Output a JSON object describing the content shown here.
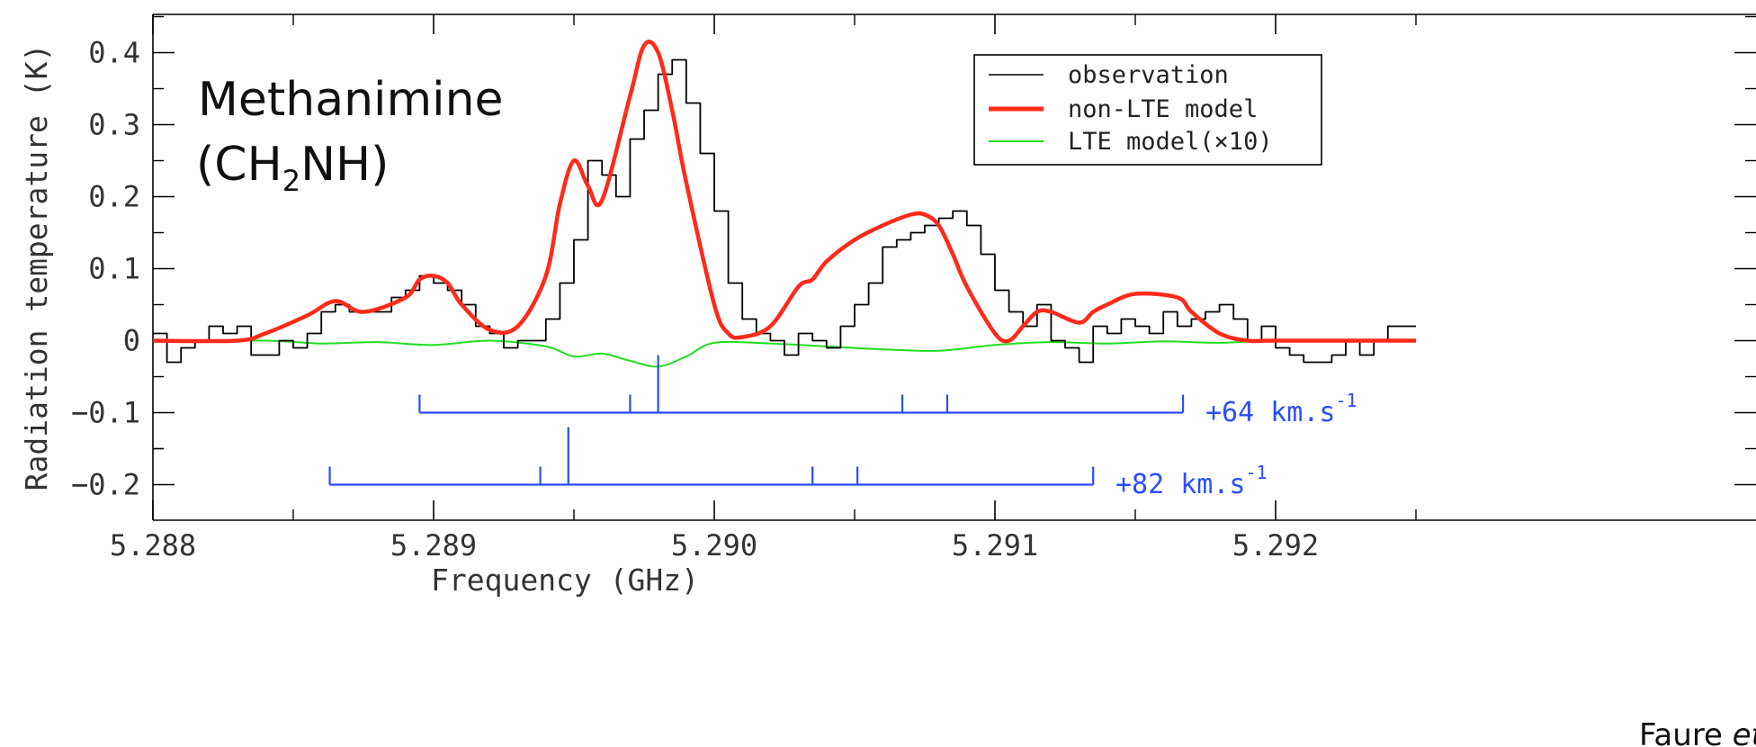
{
  "chart_data": {
    "type": "line",
    "title": "",
    "annotation": {
      "line1": "Methanimine",
      "line2_prefix": "(CH",
      "line2_sub": "2",
      "line2_suffix": "NH)"
    },
    "xlabel": "Frequency (GHz)",
    "ylabel": "Radiation temperature (K)",
    "xlim": [
      5.288,
      5.2925
    ],
    "ylim": [
      -0.25,
      0.45
    ],
    "xticks": [
      5.288,
      5.289,
      5.29,
      5.291,
      5.292
    ],
    "xtick_labels": [
      "5.288",
      "5.289",
      "5.290",
      "5.291",
      "5.292"
    ],
    "yticks": [
      -0.2,
      -0.1,
      0,
      0.1,
      0.2,
      0.3,
      0.4
    ],
    "ytick_labels": [
      "−0.2",
      "−0.1",
      "0",
      "0.1",
      "0.2",
      "0.3",
      "0.4"
    ],
    "legend": {
      "position": "top-right",
      "entries": [
        {
          "label": "observation",
          "color": "#000000"
        },
        {
          "label": "non-LTE model",
          "color": "#ff2a1a"
        },
        {
          "label": "LTE model(×10)",
          "color": "#22dd22"
        }
      ]
    },
    "series": [
      {
        "name": "observation",
        "style": "step",
        "color": "#000000",
        "x": [
          5.288,
          5.28805,
          5.2881,
          5.28815,
          5.2882,
          5.28825,
          5.2883,
          5.28835,
          5.2884,
          5.28845,
          5.2885,
          5.28855,
          5.2886,
          5.28865,
          5.2887,
          5.28875,
          5.2888,
          5.28885,
          5.2889,
          5.28895,
          5.289,
          5.28905,
          5.2891,
          5.28915,
          5.2892,
          5.28925,
          5.2893,
          5.28935,
          5.2894,
          5.28945,
          5.2895,
          5.28955,
          5.2896,
          5.28965,
          5.2897,
          5.28975,
          5.2898,
          5.28985,
          5.2899,
          5.28995,
          5.29,
          5.29005,
          5.2901,
          5.29015,
          5.2902,
          5.29025,
          5.2903,
          5.29035,
          5.2904,
          5.29045,
          5.2905,
          5.29055,
          5.2906,
          5.29065,
          5.2907,
          5.29075,
          5.2908,
          5.29085,
          5.2909,
          5.29095,
          5.291,
          5.29105,
          5.2911,
          5.29115,
          5.2912,
          5.29125,
          5.2913,
          5.29135,
          5.2914,
          5.29145,
          5.2915,
          5.29155,
          5.2916,
          5.29165,
          5.2917,
          5.29175,
          5.2918,
          5.29185,
          5.2919,
          5.29195,
          5.292,
          5.29205,
          5.2921,
          5.29215,
          5.2922,
          5.29225,
          5.2923,
          5.29235,
          5.2924,
          5.29245
        ],
        "y": [
          0.01,
          -0.03,
          -0.01,
          0.0,
          0.02,
          0.01,
          0.02,
          -0.02,
          -0.02,
          0.0,
          -0.01,
          0.01,
          0.04,
          0.05,
          0.04,
          0.04,
          0.04,
          0.06,
          0.07,
          0.09,
          0.08,
          0.07,
          0.05,
          0.02,
          0.01,
          -0.01,
          0.0,
          0.0,
          0.03,
          0.08,
          0.14,
          0.25,
          0.23,
          0.2,
          0.28,
          0.32,
          0.37,
          0.39,
          0.33,
          0.26,
          0.18,
          0.08,
          0.03,
          0.01,
          0.0,
          -0.02,
          0.01,
          0.0,
          -0.01,
          0.02,
          0.05,
          0.08,
          0.13,
          0.14,
          0.15,
          0.16,
          0.17,
          0.18,
          0.16,
          0.12,
          0.07,
          0.04,
          0.02,
          0.05,
          0.0,
          -0.01,
          -0.03,
          0.02,
          0.01,
          0.03,
          0.02,
          0.01,
          0.04,
          0.02,
          0.03,
          0.04,
          0.05,
          0.03,
          0.0,
          0.02,
          -0.01,
          -0.02,
          -0.03,
          -0.03,
          -0.02,
          0.0,
          -0.02,
          0.0,
          0.02,
          0.02
        ]
      },
      {
        "name": "non-LTE model",
        "style": "line",
        "color": "#ff2a1a",
        "x": [
          5.288,
          5.2883,
          5.2884,
          5.28855,
          5.28865,
          5.28875,
          5.2889,
          5.28895,
          5.289,
          5.28905,
          5.2891,
          5.2892,
          5.2893,
          5.2894,
          5.28945,
          5.2895,
          5.28955,
          5.2896,
          5.2897,
          5.28975,
          5.2898,
          5.28985,
          5.2899,
          5.29,
          5.29005,
          5.2901,
          5.2902,
          5.2903,
          5.29035,
          5.2904,
          5.2905,
          5.2906,
          5.2907,
          5.29075,
          5.2908,
          5.29085,
          5.2909,
          5.291,
          5.29105,
          5.2911,
          5.29115,
          5.2912,
          5.2913,
          5.29135,
          5.2914,
          5.2915,
          5.29165,
          5.2917,
          5.2918,
          5.2919,
          5.292,
          5.2925
        ],
        "y": [
          0.0,
          0.0,
          0.01,
          0.035,
          0.055,
          0.04,
          0.06,
          0.085,
          0.09,
          0.08,
          0.05,
          0.015,
          0.02,
          0.09,
          0.19,
          0.25,
          0.215,
          0.195,
          0.34,
          0.41,
          0.4,
          0.32,
          0.22,
          0.05,
          0.01,
          0.005,
          0.02,
          0.075,
          0.085,
          0.11,
          0.14,
          0.16,
          0.175,
          0.175,
          0.16,
          0.12,
          0.075,
          0.01,
          0.0,
          0.02,
          0.04,
          0.04,
          0.025,
          0.04,
          0.05,
          0.065,
          0.06,
          0.04,
          0.01,
          0.0,
          0.0,
          0.0
        ]
      },
      {
        "name": "LTE model(×10)",
        "style": "line",
        "color": "#22dd22",
        "x": [
          5.288,
          5.2884,
          5.2886,
          5.2888,
          5.289,
          5.2892,
          5.2894,
          5.2895,
          5.2896,
          5.2897,
          5.2898,
          5.2899,
          5.29,
          5.2902,
          5.2904,
          5.2906,
          5.2908,
          5.291,
          5.2912,
          5.2914,
          5.2916,
          5.2918,
          5.292,
          5.2925
        ],
        "y": [
          0.0,
          0.0,
          -0.004,
          -0.002,
          -0.006,
          0.0,
          -0.008,
          -0.022,
          -0.018,
          -0.028,
          -0.036,
          -0.022,
          -0.003,
          -0.004,
          -0.008,
          -0.012,
          -0.014,
          -0.006,
          -0.002,
          -0.004,
          -0.001,
          -0.003,
          0.0,
          0.0
        ]
      }
    ],
    "line_markers": [
      {
        "label": "+64 km.s",
        "superscript": "-1",
        "color": "#2a4dff",
        "y": -0.1,
        "x_start": 5.28895,
        "x_end": 5.29167,
        "tick_top": -0.075,
        "lines": [
          {
            "x": 5.2897,
            "top": -0.075
          },
          {
            "x": 5.2898,
            "top": -0.02
          },
          {
            "x": 5.29067,
            "top": -0.075
          },
          {
            "x": 5.29083,
            "top": -0.075
          }
        ]
      },
      {
        "label": "+82 km.s",
        "superscript": "-1",
        "color": "#2a4dff",
        "y": -0.2,
        "x_start": 5.28863,
        "x_end": 5.29135,
        "tick_top": -0.175,
        "lines": [
          {
            "x": 5.28938,
            "top": -0.175
          },
          {
            "x": 5.28948,
            "top": -0.12
          },
          {
            "x": 5.29035,
            "top": -0.175
          },
          {
            "x": 5.29051,
            "top": -0.175
          }
        ]
      }
    ],
    "credit": {
      "prefix": "Faure ",
      "italic": "et al"
    }
  }
}
